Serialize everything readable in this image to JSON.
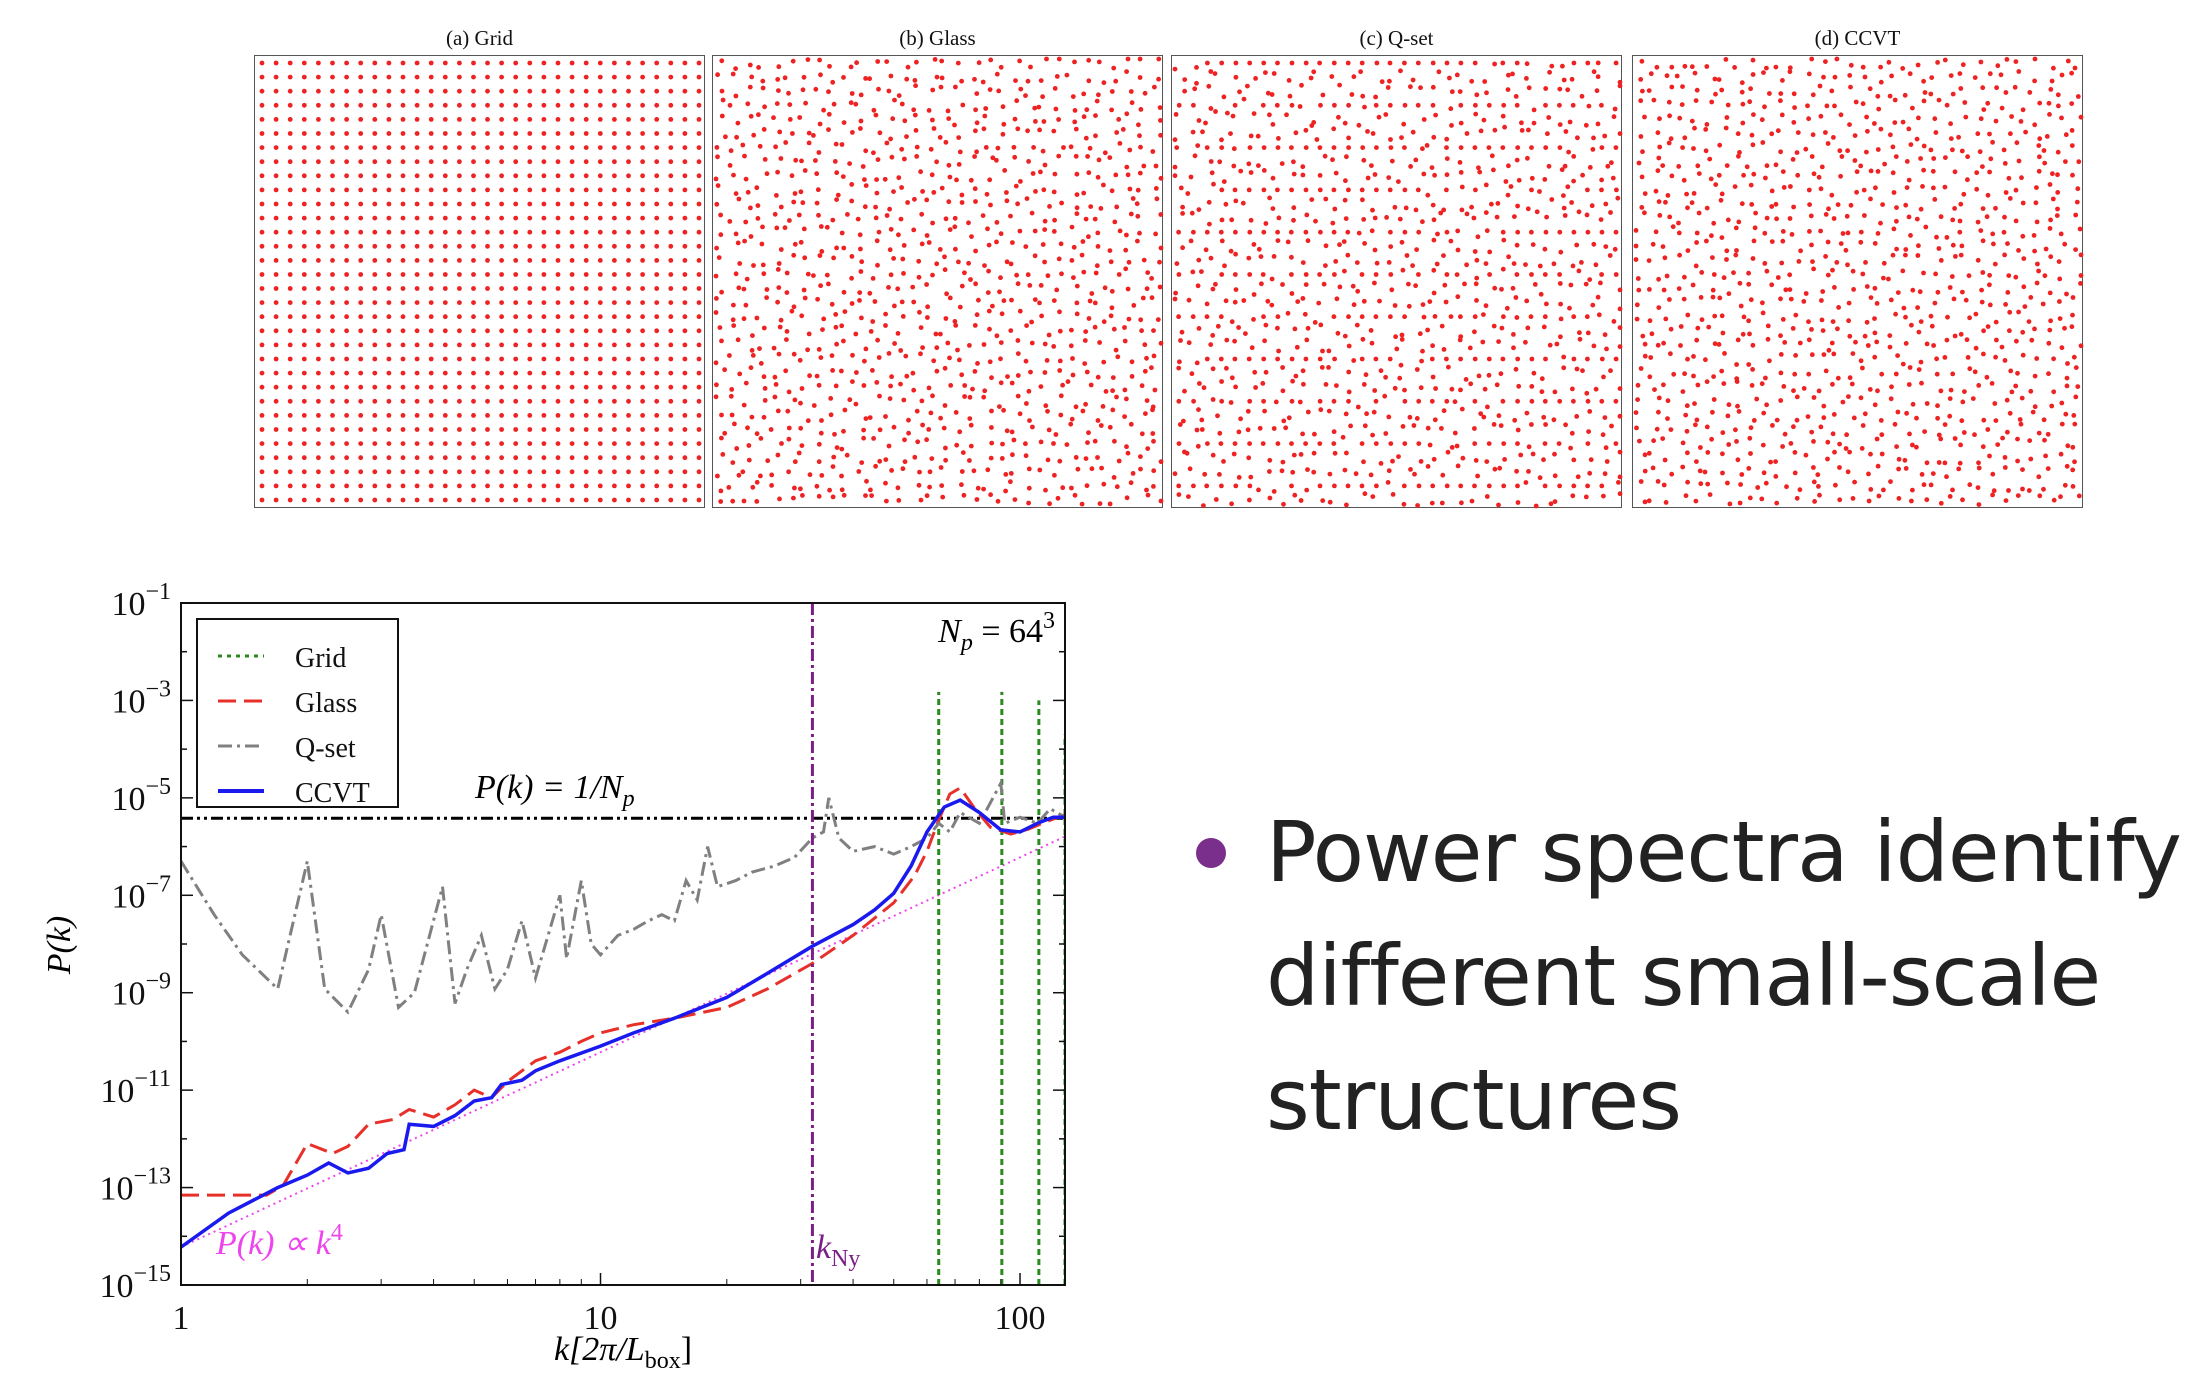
{
  "panels": [
    {
      "title": "(a) Grid",
      "kind": "grid"
    },
    {
      "title": "(b) Glass",
      "kind": "glass"
    },
    {
      "title": "(c) Q-set",
      "kind": "qset"
    },
    {
      "title": "(d) CCVT",
      "kind": "ccvt"
    }
  ],
  "particle_color": "#ee2222",
  "particles_per_side": 32,
  "bullet": {
    "text": "Power spectra identify different small-scale structures",
    "color": "#7a2f8c"
  },
  "chart_data": {
    "type": "line",
    "xscale": "log",
    "yscale": "log",
    "xlim": [
      1,
      128
    ],
    "ylim": [
      1e-15,
      0.1
    ],
    "xlabel": {
      "main": "k[2π/L",
      "sub": "box",
      "end": "]"
    },
    "ylabel": "P(k)",
    "xticks": [
      {
        "value": 1,
        "label": "1"
      },
      {
        "value": 10,
        "label": "10"
      },
      {
        "value": 100,
        "label": "100"
      }
    ],
    "yticks": [
      {
        "value": -1,
        "base": "10",
        "exp": "−1"
      },
      {
        "value": -3,
        "base": "10",
        "exp": "−3"
      },
      {
        "value": -5,
        "base": "10",
        "exp": "−5"
      },
      {
        "value": -7,
        "base": "10",
        "exp": "−7"
      },
      {
        "value": -9,
        "base": "10",
        "exp": "−9"
      },
      {
        "value": -11,
        "base": "10",
        "exp": "−11"
      },
      {
        "value": -13,
        "base": "10",
        "exp": "−13"
      },
      {
        "value": -15,
        "base": "10",
        "exp": "−15"
      }
    ],
    "legend": {
      "placement": "top-left",
      "entries": [
        {
          "name": "Grid",
          "color": "#2a8a1e",
          "dash": "4,5"
        },
        {
          "name": "Glass",
          "color": "#e8302a",
          "dash": "18,8"
        },
        {
          "name": "Q-set",
          "color": "#808080",
          "dash": "14,5,3,5"
        },
        {
          "name": "CCVT",
          "color": "#1a1aee",
          "dash": ""
        }
      ]
    },
    "annotations": {
      "np": {
        "main": "N",
        "sub": "p",
        "mid": " = 64",
        "sup": "3"
      },
      "shot": {
        "main": "P(k) = 1/N",
        "sub": "p",
        "value": 3.815e-06,
        "color": "#000000"
      },
      "kny": {
        "main": "k",
        "sub": "Ny",
        "value": 32,
        "color": "#7b1f86"
      },
      "powerlaw": {
        "main": "P(k) ∝ k",
        "sup": "4",
        "amplitude": 6e-15,
        "exponent": 4,
        "color": "#ee44ee"
      }
    },
    "series": [
      {
        "name": "Grid",
        "color": "#2a8a1e",
        "spikes": [
          {
            "k": 64,
            "P": 0.0015
          },
          {
            "k": 90.5,
            "P": 0.0015
          },
          {
            "k": 110.9,
            "P": 0.001
          },
          {
            "k": 128,
            "P": 0.0002
          }
        ]
      },
      {
        "name": "Glass",
        "color": "#e8302a",
        "points": [
          [
            1,
            7e-14
          ],
          [
            1.6,
            7e-14
          ],
          [
            1.75,
            1.1e-13
          ],
          [
            2,
            8e-13
          ],
          [
            2.3,
            5e-13
          ],
          [
            2.5,
            7e-13
          ],
          [
            2.8,
            2e-12
          ],
          [
            3.2,
            2.5e-12
          ],
          [
            3.5,
            4e-12
          ],
          [
            4,
            2.8e-12
          ],
          [
            4.5,
            5e-12
          ],
          [
            5,
            1e-11
          ],
          [
            5.5,
            7e-12
          ],
          [
            6,
            1.5e-11
          ],
          [
            7,
            4e-11
          ],
          [
            8,
            6e-11
          ],
          [
            9,
            1e-10
          ],
          [
            10,
            1.5e-10
          ],
          [
            12,
            2.2e-10
          ],
          [
            15,
            3e-10
          ],
          [
            20,
            5e-10
          ],
          [
            25,
            1.2e-09
          ],
          [
            32,
            4e-09
          ],
          [
            40,
            1.5e-08
          ],
          [
            50,
            7e-08
          ],
          [
            56,
            2.5e-07
          ],
          [
            60,
            8e-07
          ],
          [
            64,
            3.5e-06
          ],
          [
            68,
            1.2e-05
          ],
          [
            72,
            1.6e-05
          ],
          [
            78,
            6e-06
          ],
          [
            85,
            2.5e-06
          ],
          [
            95,
            1.8e-06
          ],
          [
            105,
            2.3e-06
          ],
          [
            115,
            3.2e-06
          ],
          [
            128,
            4.5e-06
          ]
        ]
      },
      {
        "name": "Q-set",
        "color": "#808080",
        "points": [
          [
            1,
            5e-07
          ],
          [
            1.2,
            4e-08
          ],
          [
            1.4,
            6e-09
          ],
          [
            1.7,
            1.2e-09
          ],
          [
            2,
            5e-07
          ],
          [
            2.2,
            1.2e-09
          ],
          [
            2.5,
            4e-10
          ],
          [
            2.8,
            3e-09
          ],
          [
            3,
            4e-08
          ],
          [
            3.3,
            5e-10
          ],
          [
            3.6,
            1e-09
          ],
          [
            4.2,
            1.5e-07
          ],
          [
            4.5,
            6e-10
          ],
          [
            4.8,
            3e-09
          ],
          [
            5.2,
            1.5e-08
          ],
          [
            5.6,
            1.2e-09
          ],
          [
            6,
            3e-09
          ],
          [
            6.5,
            3e-08
          ],
          [
            7,
            2e-09
          ],
          [
            7.5,
            1.5e-08
          ],
          [
            8,
            1e-07
          ],
          [
            8.3,
            5e-09
          ],
          [
            9,
            2e-07
          ],
          [
            9.5,
            1e-08
          ],
          [
            10,
            6e-09
          ],
          [
            11,
            1.5e-08
          ],
          [
            12,
            2e-08
          ],
          [
            13,
            3e-08
          ],
          [
            14,
            4e-08
          ],
          [
            15,
            3e-08
          ],
          [
            16,
            2e-07
          ],
          [
            17,
            8e-08
          ],
          [
            18,
            1e-06
          ],
          [
            19,
            1.5e-07
          ],
          [
            21,
            2e-07
          ],
          [
            23,
            3e-07
          ],
          [
            26,
            4e-07
          ],
          [
            29,
            6e-07
          ],
          [
            32,
            1.5e-06
          ],
          [
            34,
            2e-06
          ],
          [
            35,
            1e-05
          ],
          [
            37,
            1.5e-06
          ],
          [
            40,
            8e-07
          ],
          [
            45,
            1e-06
          ],
          [
            50,
            7e-07
          ],
          [
            55,
            1e-06
          ],
          [
            60,
            1.5e-06
          ],
          [
            64,
            3e-06
          ],
          [
            68,
            2e-06
          ],
          [
            72,
            5e-06
          ],
          [
            80,
            3e-06
          ],
          [
            90,
            2e-05
          ],
          [
            92,
            3e-06
          ],
          [
            100,
            4e-06
          ],
          [
            110,
            3e-06
          ],
          [
            118,
            6e-06
          ],
          [
            128,
            4e-06
          ]
        ]
      },
      {
        "name": "CCVT",
        "color": "#1a1aee",
        "points": [
          [
            1,
            6e-15
          ],
          [
            1.3,
            3e-14
          ],
          [
            1.7,
            1e-13
          ],
          [
            2,
            1.8e-13
          ],
          [
            2.25,
            3.2e-13
          ],
          [
            2.5,
            2e-13
          ],
          [
            2.8,
            2.5e-13
          ],
          [
            3.1,
            5e-13
          ],
          [
            3.4,
            6e-13
          ],
          [
            3.5,
            2e-12
          ],
          [
            4,
            1.8e-12
          ],
          [
            4.5,
            3e-12
          ],
          [
            5,
            6e-12
          ],
          [
            5.5,
            7e-12
          ],
          [
            5.8,
            1.3e-11
          ],
          [
            6.5,
            1.6e-11
          ],
          [
            7,
            2.5e-11
          ],
          [
            8,
            4e-11
          ],
          [
            10,
            8e-11
          ],
          [
            12,
            1.5e-10
          ],
          [
            15,
            3e-10
          ],
          [
            20,
            8e-10
          ],
          [
            25,
            2.5e-09
          ],
          [
            32,
            9e-09
          ],
          [
            40,
            2.5e-08
          ],
          [
            45,
            5e-08
          ],
          [
            50,
            1.1e-07
          ],
          [
            55,
            4e-07
          ],
          [
            60,
            2e-06
          ],
          [
            66,
            6.5e-06
          ],
          [
            72,
            9e-06
          ],
          [
            80,
            5e-06
          ],
          [
            90,
            2.2e-06
          ],
          [
            100,
            2e-06
          ],
          [
            110,
            3e-06
          ],
          [
            120,
            4e-06
          ],
          [
            128,
            4e-06
          ]
        ]
      }
    ]
  }
}
